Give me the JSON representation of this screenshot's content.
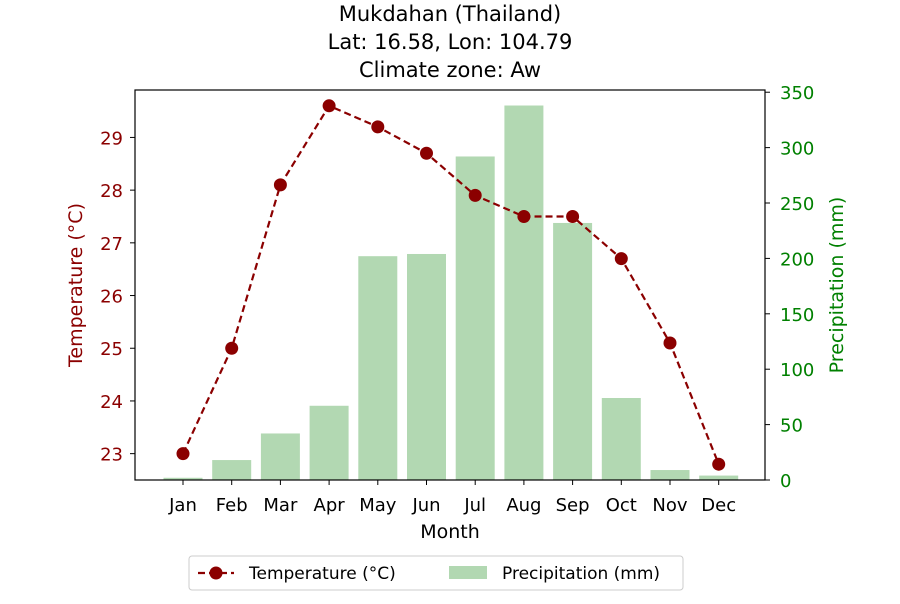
{
  "chart_data": {
    "type": "bar+line",
    "title_lines": [
      "Mukdahan (Thailand)",
      "Lat: 16.58, Lon: 104.79",
      "Climate zone: Aw"
    ],
    "xlabel": "Month",
    "ylabel_left": "Temperature (°C)",
    "ylabel_right": "Precipitation (mm)",
    "categories": [
      "Jan",
      "Feb",
      "Mar",
      "Apr",
      "May",
      "Jun",
      "Jul",
      "Aug",
      "Sep",
      "Oct",
      "Nov",
      "Dec"
    ],
    "series": [
      {
        "name": "Temperature (°C)",
        "type": "line",
        "axis": "left",
        "color": "#8b0000",
        "values": [
          23.0,
          25.0,
          28.1,
          29.6,
          29.2,
          28.7,
          27.9,
          27.5,
          27.5,
          26.7,
          25.1,
          22.8
        ]
      },
      {
        "name": "Precipitation (mm)",
        "type": "bar",
        "axis": "right",
        "color": "#b2d8b2",
        "values": [
          2,
          18,
          42,
          67,
          202,
          204,
          292,
          338,
          232,
          74,
          9,
          4
        ]
      }
    ],
    "ylim_left": [
      22.5,
      29.9
    ],
    "yticks_left": [
      "23",
      "24",
      "25",
      "26",
      "27",
      "28",
      "29"
    ],
    "ylim_right": [
      0,
      352
    ],
    "yticks_right": [
      "0",
      "50",
      "100",
      "150",
      "200",
      "250",
      "300",
      "350"
    ],
    "legend_position": "bottom-center",
    "left_axis_color": "#8b0000",
    "right_axis_color": "#008000",
    "grid": false
  }
}
